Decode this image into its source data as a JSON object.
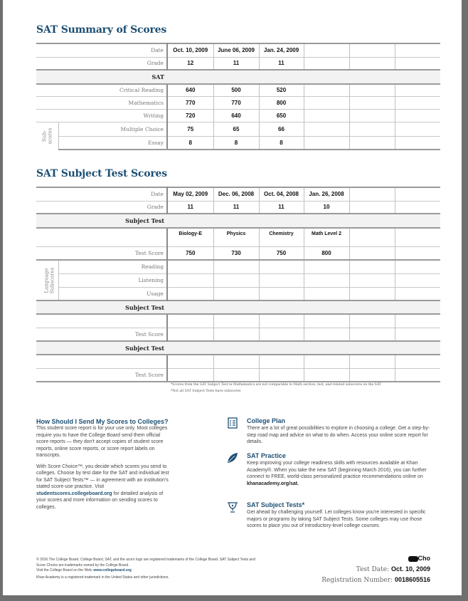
{
  "summary": {
    "title": "SAT Summary of Scores",
    "dates": [
      "Oct. 10, 2009",
      "June 06, 2009",
      "Jan. 24, 2009",
      "",
      "",
      ""
    ],
    "grades": [
      "12",
      "11",
      "11",
      "",
      "",
      ""
    ],
    "labels": {
      "date": "Date",
      "grade": "Grade",
      "section": "SAT"
    },
    "scores": [
      {
        "label": "Critical Reading",
        "values": [
          "640",
          "500",
          "520",
          "",
          "",
          ""
        ]
      },
      {
        "label": "Mathematics",
        "values": [
          "770",
          "770",
          "800",
          "",
          "",
          ""
        ]
      },
      {
        "label": "Writing",
        "values": [
          "720",
          "640",
          "650",
          "",
          "",
          ""
        ]
      }
    ],
    "subscores_label": "Sub-\nscores",
    "subscores": [
      {
        "label": "Multiple Choice",
        "values": [
          "75",
          "65",
          "66",
          "",
          "",
          ""
        ]
      },
      {
        "label": "Essay",
        "values": [
          "8",
          "8",
          "8",
          "",
          "",
          ""
        ]
      }
    ]
  },
  "subject": {
    "title": "SAT Subject Test Scores",
    "dates": [
      "May 02, 2009",
      "Dec. 06, 2008",
      "Oct. 04, 2008",
      "Jan. 26, 2008",
      "",
      ""
    ],
    "grades": [
      "11",
      "11",
      "11",
      "10",
      "",
      ""
    ],
    "labels": {
      "date": "Date",
      "grade": "Grade",
      "section": "Subject Test",
      "test_score": "Test Score"
    },
    "tests": [
      "Biology-E",
      "Physics",
      "Chemistry",
      "Math Level 2",
      "",
      ""
    ],
    "test_scores": [
      "750",
      "730",
      "750",
      "800",
      "",
      ""
    ],
    "language_label": "Language\nSubscores",
    "language": [
      "Reading",
      "Listening",
      "Usage"
    ],
    "extra_sections": [
      {
        "label": "Subject Test",
        "score_label": "Test Score"
      },
      {
        "label": "Subject Test",
        "score_label": "Test Score"
      }
    ],
    "footnotes": [
      "*Scores from the SAT Subject Test in Mathematics are not comparable to Math section, test, and related subscores on the SAT",
      "*Not all SAT Subject Tests have subscores"
    ]
  },
  "send": {
    "title": "How Should I Send My Scores to Colleges?",
    "p1": "This student score report is for your use only. Most colleges require you to have the College Board send them official score reports — they don't accept copies of student score reports, online score reports, or score report labels on transcripts.",
    "p2a": "With Score Choice™, you decide which scores you send to colleges. Choose by test date for the SAT and individual test for SAT Subject Tests™ — in agreement with an institution's stated score-use practice. Visit ",
    "p2link": "studentscores.collegeboard.org",
    "p2b": " for detailed analysis of your scores and more information on sending scores to colleges."
  },
  "features": [
    {
      "icon": "checklist-icon",
      "title": "College Plan",
      "text": "There are a lot of great possibilities to explore in choosing a college. Get a step-by-step road map and advice on what to do when. Access your online score report for details.",
      "link": ""
    },
    {
      "icon": "leaf-icon",
      "title": "SAT Practice",
      "text": "Keep improving your college readiness skills with resources available at Khan Academy®. When you take the new SAT (beginning March 2016), you can further connect to FREE, world-class personalized practice recommendations online on ",
      "link": "khanacademy.org/sat."
    },
    {
      "icon": "trophy-icon",
      "title": "SAT Subject Tests*",
      "text": "Get ahead by challenging yourself. Let colleges know you're interested in specific majors or programs by taking SAT Subject Tests. Some colleges may use those scores to place you out of introductory-level college courses.",
      "link": ""
    }
  ],
  "footer": {
    "copyright1": "© 2016 The College Board. College Board, SAT, and the acorn logo are registered trademarks of the College Board. SAT Subject Tests and Score Choice are trademarks owned by the College Board.",
    "visit": "Visit the College Board on the Web: ",
    "visit_link": "www.collegeboard.org",
    "khan": "Khan Academy is a registered trademark in the United States and other jurisdictions.",
    "name": "Cho",
    "test_date_label": "Test Date:",
    "test_date": "Oct. 10, 2009",
    "reg_label": "Registration Number:",
    "reg_number": "0018605516"
  },
  "colors": {
    "accent": "#1d4f73",
    "header_bg": "#f2f2f2"
  }
}
